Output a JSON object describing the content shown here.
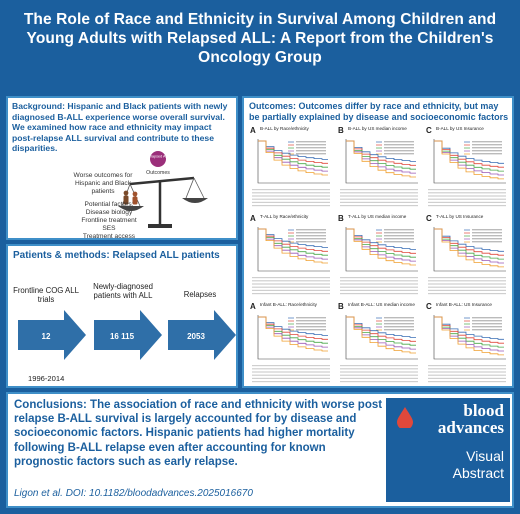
{
  "title": "The Role of Race and Ethnicity in Survival Among Children and Young Adults with Relapsed ALL: A Report from the Children's Oncology Group",
  "background": {
    "heading": "Background:",
    "text": "Hispanic and Black patients with newly diagnosed B-ALL experience worse overall survival. We examined how race and ethnicity may impact post-relapse ALL survival and contribute to these disparities.",
    "diagram": {
      "relapsed_label": "Relapsed ALL",
      "outcomes_label": "Outcomes",
      "worse_outcomes": "Worse outcomes for Hispanic and Black patients",
      "potential_factors_title": "Potential factors:",
      "factors": [
        "Disease biology",
        "Frontline treatment",
        "SES",
        "Treatment access"
      ]
    }
  },
  "patients_methods": {
    "heading": "Patients & methods:",
    "subheading": "Relapsed ALL patients",
    "steps": [
      {
        "label": "Frontline COG ALL trials",
        "value": "12"
      },
      {
        "label": "Newly-diagnosed patients with ALL",
        "value": "16 115"
      },
      {
        "label": "Relapses",
        "value": "2053"
      }
    ],
    "years": "1996-2014"
  },
  "outcomes": {
    "heading": "Outcomes:",
    "text": "Outcomes differ by race and ethnicity, but may be partially explained by disease and socioeconomic factors",
    "panels": [
      {
        "letter": "A",
        "caption": "B-ALL by Race/ethnicity"
      },
      {
        "letter": "B",
        "caption": "B-ALL by US median income"
      },
      {
        "letter": "C",
        "caption": "B-ALL by US Insurance"
      },
      {
        "letter": "A",
        "caption": "T-ALL by Race/ethnicity"
      },
      {
        "letter": "B",
        "caption": "T-ALL by US median income"
      },
      {
        "letter": "C",
        "caption": "T-ALL by US Insurance"
      },
      {
        "letter": "A",
        "caption": "Infant B-ALL: Race/ethnicity"
      },
      {
        "letter": "B",
        "caption": "Infant B-ALL: US median income"
      },
      {
        "letter": "C",
        "caption": "Infant B-ALL: US Insurance"
      }
    ],
    "colors": [
      "#3a6fb5",
      "#e0483b",
      "#4aa84a",
      "#9b59b6",
      "#f0a030",
      "#666666"
    ]
  },
  "conclusions": {
    "heading": "Conclusions:",
    "text": "The association of race and ethnicity with worse post relapse B-ALL survival is largely accounted for by disease and socioeconomic factors. Hispanic patients had higher mortality following B-ALL relapse even after accounting for known prognostic factors such as early relapse.",
    "citation": "Ligon et al. DOI: 10.1182/bloodadvances.2025016670"
  },
  "logo": {
    "line1": "blood",
    "line2": "advances",
    "line3": "Visual",
    "line4": "Abstract"
  }
}
